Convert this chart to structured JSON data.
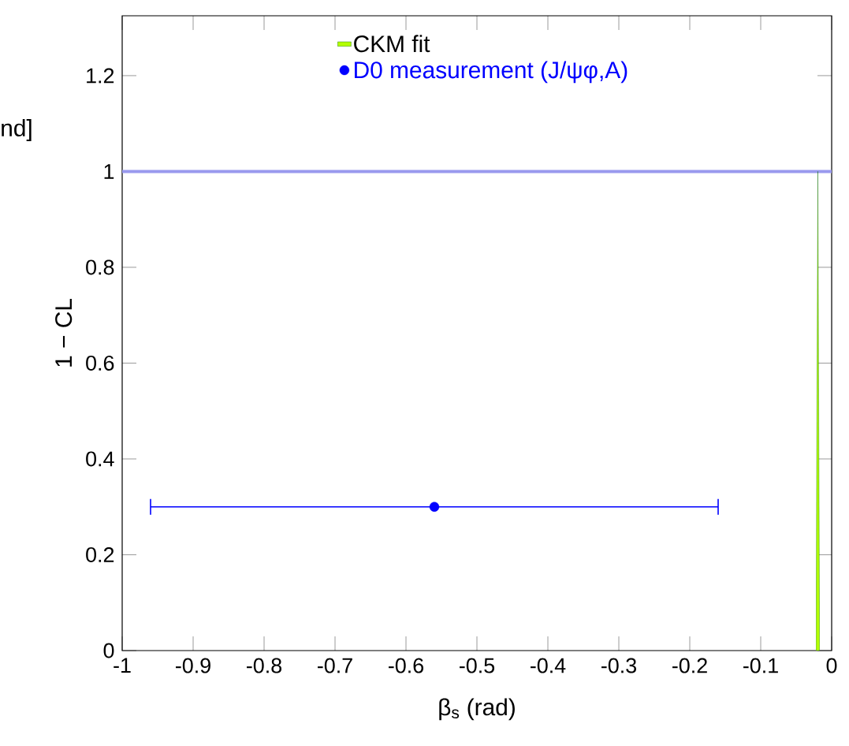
{
  "chart_data": {
    "type": "scatter",
    "xlabel": "β$_{s}$  (rad)",
    "ylabel": "1 − CL",
    "xlim": [
      -1,
      0
    ],
    "ylim": [
      0,
      1.325
    ],
    "xticks": [
      -1,
      -0.9,
      -0.8,
      -0.7,
      -0.6,
      -0.5,
      -0.4,
      -0.3,
      -0.2,
      -0.1,
      0
    ],
    "yticks": [
      0,
      0.2,
      0.4,
      0.6,
      0.8,
      1,
      1.2
    ],
    "grid": false,
    "legend": "top",
    "annotations": [
      "nd]"
    ],
    "ref_lines": [
      {
        "axis": "y",
        "value": 1,
        "color": "#9999ee"
      }
    ],
    "series": [
      {
        "name": "CKM fit",
        "type": "area",
        "color": "#b3ff00",
        "x": [
          -0.022,
          -0.0195,
          -0.017
        ],
        "values": [
          0,
          1,
          0
        ],
        "marker": "none"
      },
      {
        "name": "D0 measurement (J/ψφ,A)",
        "type": "scatter",
        "color": "#0000ff",
        "x": [
          -0.56
        ],
        "values": [
          0.3
        ],
        "xerrors": [
          0.4
        ],
        "marker": "circle"
      }
    ]
  }
}
